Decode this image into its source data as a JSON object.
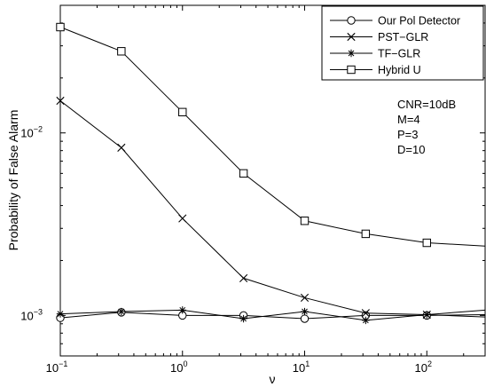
{
  "chart_data": {
    "type": "line",
    "title": "",
    "xlabel": "ν",
    "ylabel": "Probability of False Alarm",
    "xscale": "log",
    "yscale": "log",
    "xlim": [
      0.1,
      300
    ],
    "ylim": [
      0.0006,
      0.05
    ],
    "grid": false,
    "legend_position": "top-right",
    "x_ticks": [
      {
        "value": 0.1,
        "base": "10",
        "exp": "−1"
      },
      {
        "value": 1,
        "base": "10",
        "exp": "0"
      },
      {
        "value": 10,
        "base": "10",
        "exp": "1"
      },
      {
        "value": 100,
        "base": "10",
        "exp": "2"
      }
    ],
    "y_ticks": [
      {
        "value": 0.001,
        "base": "10",
        "exp": "−3"
      },
      {
        "value": 0.01,
        "base": "10",
        "exp": "−2"
      }
    ],
    "annotations": [
      "CNR=10dB",
      "M=4",
      "P=3",
      "D=10"
    ],
    "series": [
      {
        "name": "Our Pol Detector",
        "marker": "circle",
        "x": [
          0.1,
          0.316,
          1,
          3.16,
          10,
          31.6,
          100,
          300
        ],
        "y": [
          0.00097,
          0.00104,
          0.001,
          0.001,
          0.00096,
          0.001,
          0.001,
          0.00101
        ]
      },
      {
        "name": "PST−GLR",
        "marker": "x",
        "x": [
          0.1,
          0.316,
          1,
          3.16,
          10,
          31.6,
          100,
          300
        ],
        "y": [
          0.015,
          0.0083,
          0.0034,
          0.0016,
          0.00125,
          0.00103,
          0.00101,
          0.00098
        ]
      },
      {
        "name": "TF−GLR",
        "marker": "star",
        "x": [
          0.1,
          0.316,
          1,
          3.16,
          10,
          31.6,
          100,
          300
        ],
        "y": [
          0.00102,
          0.00105,
          0.00107,
          0.00096,
          0.00105,
          0.00094,
          0.00101,
          0.00107
        ]
      },
      {
        "name": "Hybrid U",
        "marker": "square",
        "x": [
          0.1,
          0.316,
          1,
          3.16,
          10,
          31.6,
          100,
          300
        ],
        "y": [
          0.038,
          0.028,
          0.013,
          0.006,
          0.0033,
          0.0028,
          0.0025,
          0.0024
        ]
      }
    ]
  }
}
